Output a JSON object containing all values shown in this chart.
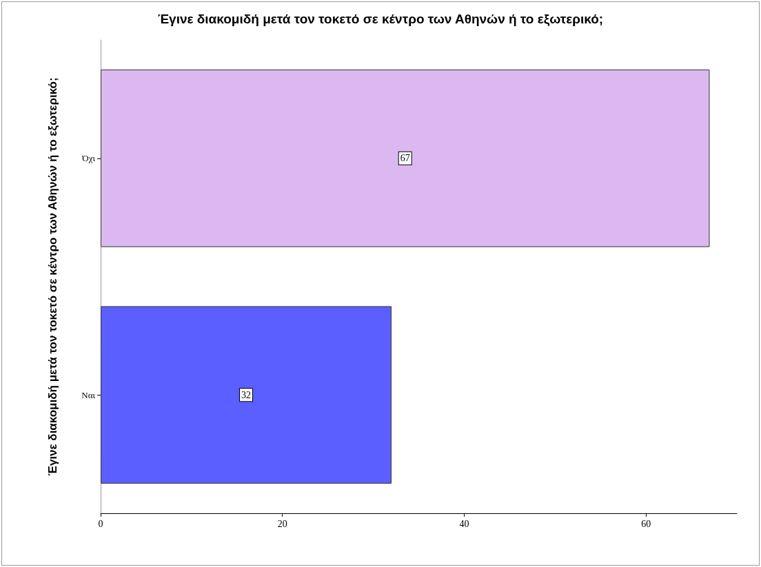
{
  "chart_data": {
    "type": "bar",
    "orientation": "horizontal",
    "title": "Έγινε διακομιδή μετά τον τοκετό σε κέντρο των Αθηνών ή το εξωτερικό;",
    "ylabel": "Έγινε διακομιδή μετά τον τοκετό σε κέντρο των Αθηνών ή το εξωτερικό;",
    "categories": [
      "Όχι",
      "Ναι"
    ],
    "values": [
      67,
      32
    ],
    "colors": [
      "#dcb8f0",
      "#5b5fff"
    ],
    "xlim": [
      0,
      70
    ],
    "xticks": [
      0,
      20,
      40,
      60
    ],
    "grid": false,
    "data_labels": true
  }
}
